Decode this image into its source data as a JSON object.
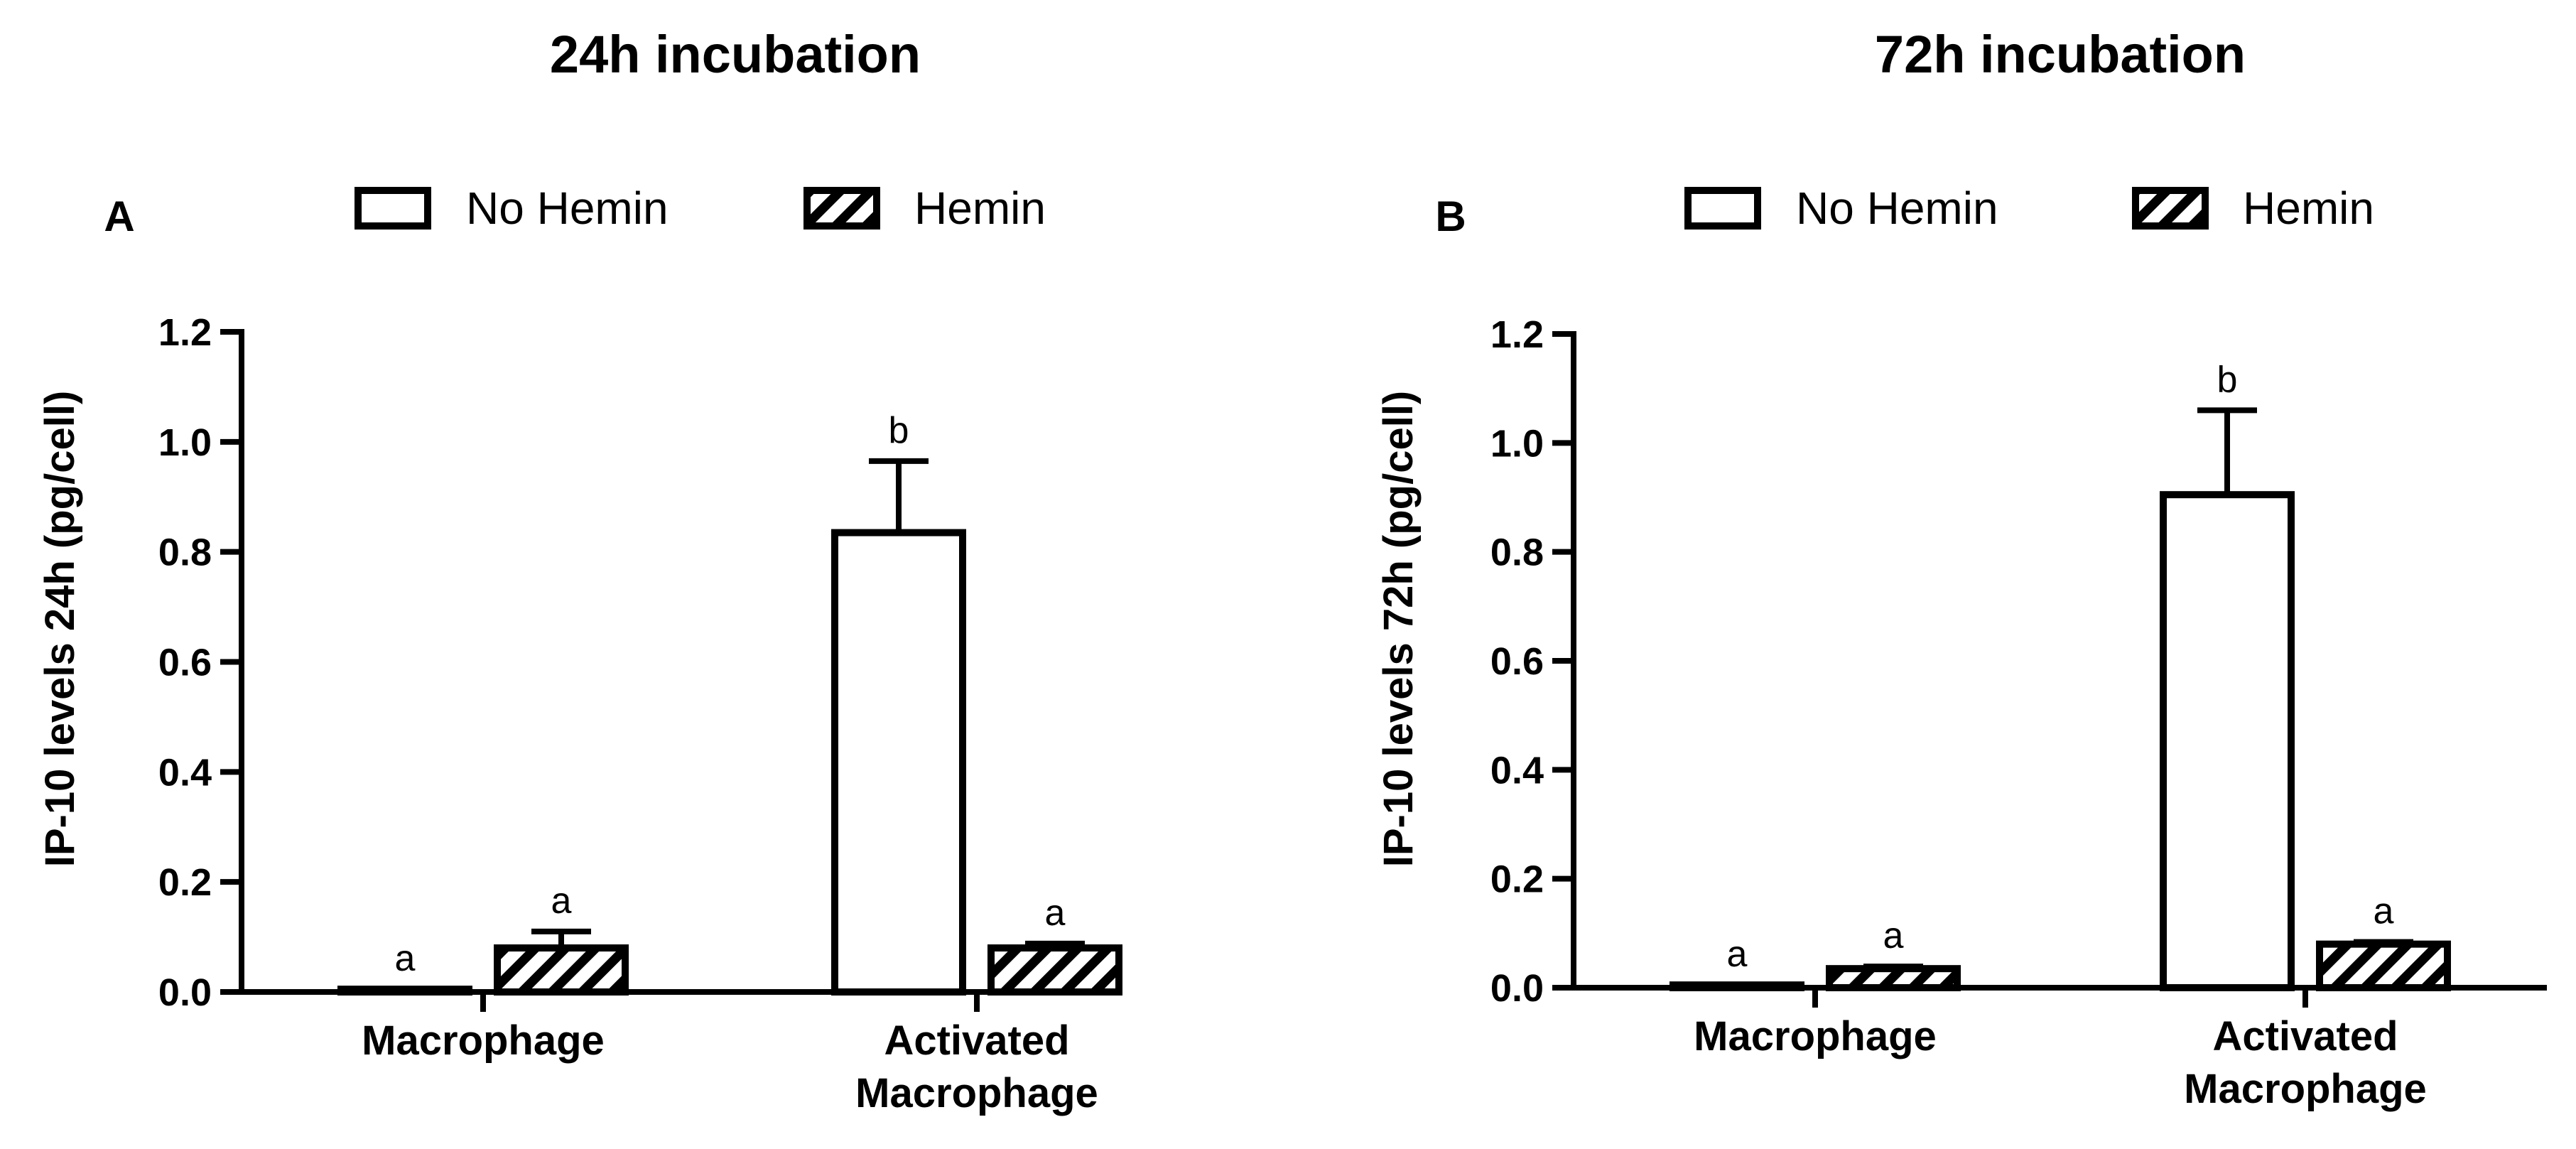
{
  "legend": {
    "no_hemin": "No Hemin",
    "hemin": "Hemin"
  },
  "chart_data": [
    {
      "type": "bar",
      "panel": "A",
      "title": "24h incubation",
      "ylabel": "IP-10 levels 24h (pg/cell)",
      "xlabel": "",
      "ylim": [
        0,
        1.2
      ],
      "yticks": [
        "0.0",
        "0.2",
        "0.4",
        "0.6",
        "0.8",
        "1.0",
        "1.2"
      ],
      "categories": [
        {
          "lines": [
            "Macrophage"
          ]
        },
        {
          "lines": [
            "Activated",
            "Macrophage"
          ]
        }
      ],
      "series": [
        {
          "name": "No Hemin",
          "pattern": "open",
          "values": [
            0.005,
            0.835
          ],
          "errors": [
            0.0,
            0.13
          ],
          "labels": [
            "a",
            "b"
          ]
        },
        {
          "name": "Hemin",
          "pattern": "hatched",
          "values": [
            0.08,
            0.08
          ],
          "errors": [
            0.03,
            0.008
          ],
          "labels": [
            "a",
            "a"
          ]
        }
      ],
      "grid": false
    },
    {
      "type": "bar",
      "panel": "B",
      "title": "72h incubation",
      "ylabel": "IP-10 levels 72h (pg/cell)",
      "xlabel": "",
      "ylim": [
        0,
        1.2
      ],
      "yticks": [
        "0.0",
        "0.2",
        "0.4",
        "0.6",
        "0.8",
        "1.0",
        "1.2"
      ],
      "categories": [
        {
          "lines": [
            "Macrophage"
          ]
        },
        {
          "lines": [
            "Activated",
            "Macrophage"
          ]
        }
      ],
      "series": [
        {
          "name": "No Hemin",
          "pattern": "open",
          "values": [
            0.005,
            0.905
          ],
          "errors": [
            0.0,
            0.155
          ],
          "labels": [
            "a",
            "b"
          ]
        },
        {
          "name": "Hemin",
          "pattern": "hatched",
          "values": [
            0.035,
            0.08
          ],
          "errors": [
            0.004,
            0.004
          ],
          "labels": [
            "a",
            "a"
          ]
        }
      ],
      "grid": false
    }
  ]
}
